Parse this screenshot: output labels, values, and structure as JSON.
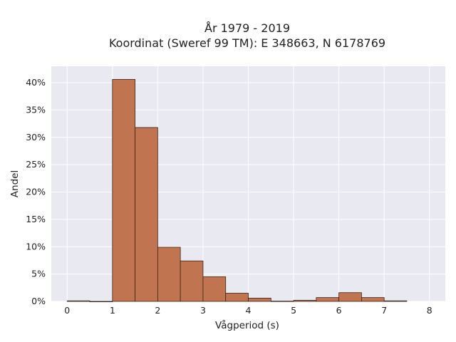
{
  "chart_data": {
    "type": "bar",
    "title": "År 1979 - 2019",
    "subtitle": "Koordinat (Sweref 99 TM): E 348663, N 6178769",
    "xlabel": "Vågperiod (s)",
    "ylabel": "Andel",
    "xlim": [
      -0.35,
      8.35
    ],
    "ylim": [
      0,
      0.43
    ],
    "x_ticks": [
      0,
      1,
      2,
      3,
      4,
      5,
      6,
      7,
      8
    ],
    "y_ticks": [
      0,
      0.05,
      0.1,
      0.15,
      0.2,
      0.25,
      0.3,
      0.35,
      0.4
    ],
    "y_tick_labels": [
      "0%",
      "5%",
      "10%",
      "15%",
      "20%",
      "25%",
      "30%",
      "35%",
      "40%"
    ],
    "bin_width": 0.5,
    "bins": [
      {
        "start": 0.0,
        "value": 0.001
      },
      {
        "start": 0.5,
        "value": 0.0
      },
      {
        "start": 1.0,
        "value": 0.406
      },
      {
        "start": 1.5,
        "value": 0.318
      },
      {
        "start": 2.0,
        "value": 0.099
      },
      {
        "start": 2.5,
        "value": 0.074
      },
      {
        "start": 3.0,
        "value": 0.045
      },
      {
        "start": 3.5,
        "value": 0.015
      },
      {
        "start": 4.0,
        "value": 0.006
      },
      {
        "start": 4.5,
        "value": 0.0005
      },
      {
        "start": 5.0,
        "value": 0.002
      },
      {
        "start": 5.5,
        "value": 0.007
      },
      {
        "start": 6.0,
        "value": 0.016
      },
      {
        "start": 6.5,
        "value": 0.007
      },
      {
        "start": 7.0,
        "value": 0.001
      }
    ],
    "grid": true,
    "colors": {
      "bar_fill": "#c07550",
      "bar_edge": "#3b2416",
      "plot_bg": "#e9e9f1",
      "grid": "#ffffff"
    }
  }
}
